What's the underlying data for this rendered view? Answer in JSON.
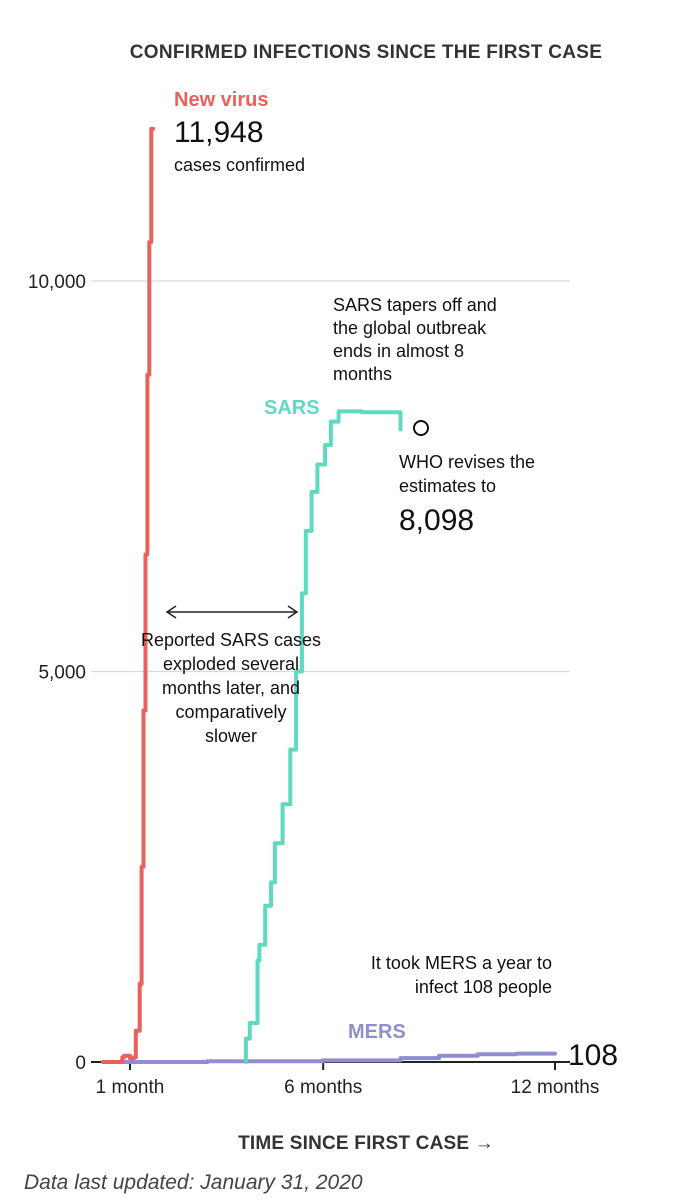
{
  "chart_data": {
    "type": "line",
    "title": "CONFIRMED INFECTIONS SINCE THE FIRST CASE",
    "xlabel": "TIME SINCE FIRST CASE →",
    "ylabel": "",
    "ylim": [
      0,
      11948
    ],
    "xlim": [
      0.3,
      12
    ],
    "x_ticks": [
      {
        "value": 1,
        "label": "1 month"
      },
      {
        "value": 6,
        "label": "6 months"
      },
      {
        "value": 12,
        "label": "12 months"
      }
    ],
    "y_ticks": [
      {
        "value": 0,
        "label": "0"
      },
      {
        "value": 5000,
        "label": "5,000"
      },
      {
        "value": 10000,
        "label": "10,000"
      }
    ],
    "series": [
      {
        "name": "New virus",
        "color": "#e8615d",
        "points": [
          [
            0.3,
            0
          ],
          [
            0.8,
            0
          ],
          [
            0.85,
            60
          ],
          [
            1.0,
            80
          ],
          [
            1.1,
            50
          ],
          [
            1.15,
            60
          ],
          [
            1.25,
            400
          ],
          [
            1.3,
            1000
          ],
          [
            1.35,
            2500
          ],
          [
            1.4,
            4500
          ],
          [
            1.45,
            6500
          ],
          [
            1.5,
            8800
          ],
          [
            1.55,
            10500
          ],
          [
            1.6,
            11948
          ]
        ]
      },
      {
        "name": "SARS",
        "color": "#5fd9c0",
        "points": [
          [
            4.0,
            0
          ],
          [
            4.1,
            300
          ],
          [
            4.3,
            500
          ],
          [
            4.35,
            1300
          ],
          [
            4.5,
            1500
          ],
          [
            4.65,
            2000
          ],
          [
            4.75,
            2300
          ],
          [
            4.95,
            2800
          ],
          [
            5.15,
            3300
          ],
          [
            5.3,
            4000
          ],
          [
            5.45,
            5000
          ],
          [
            5.55,
            6000
          ],
          [
            5.7,
            6800
          ],
          [
            5.85,
            7300
          ],
          [
            6.05,
            7650
          ],
          [
            6.2,
            7900
          ],
          [
            6.4,
            8200
          ],
          [
            6.6,
            8330
          ],
          [
            7.0,
            8330
          ],
          [
            7.4,
            8320
          ],
          [
            8.0,
            8320
          ],
          [
            8.0,
            8098
          ]
        ]
      },
      {
        "name": "MERS",
        "color": "#8f8fcf",
        "points": [
          [
            0.3,
            0
          ],
          [
            3,
            0
          ],
          [
            6,
            10
          ],
          [
            8,
            20
          ],
          [
            9,
            50
          ],
          [
            10,
            80
          ],
          [
            11,
            100
          ],
          [
            12,
            108
          ]
        ]
      }
    ],
    "annotations": {
      "new_virus_value": "11,948",
      "new_virus_text": "cases confirmed",
      "sars_tapers": [
        "SARS tapers off and",
        "the global outbreak",
        "ends in almost 8",
        "months"
      ],
      "who_revises": [
        "WHO revises the",
        "estimates to"
      ],
      "sars_value": "8,098",
      "sars_exploded": [
        "Reported SARS cases",
        "exploded several",
        "months later, and",
        "comparatively",
        "slower"
      ],
      "mers_year": [
        "It took MERS a year to",
        "infect 108 people"
      ],
      "mers_value": "108"
    },
    "footnote": "Data last updated: January 31, 2020"
  }
}
